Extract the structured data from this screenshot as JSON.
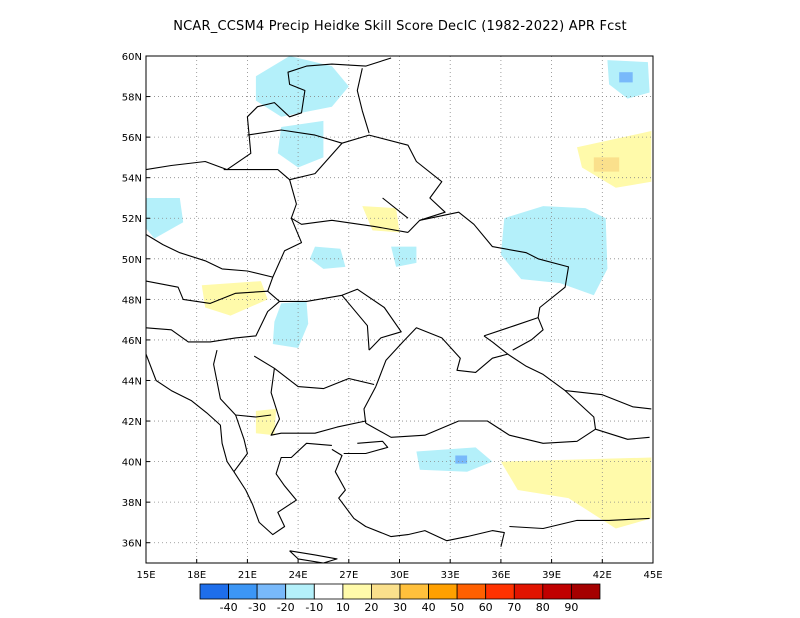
{
  "title": "NCAR_CCSM4 Precip Heidke Skill Score DecIC (1982-2022) APR Fcst",
  "map": {
    "lon_range": [
      15,
      45
    ],
    "lat_range": [
      35,
      60
    ],
    "x_ticks": [
      "15E",
      "18E",
      "21E",
      "24E",
      "27E",
      "30E",
      "33E",
      "36E",
      "39E",
      "42E",
      "45E"
    ],
    "y_ticks": [
      "36N",
      "38N",
      "40N",
      "42N",
      "44N",
      "46N",
      "48N",
      "50N",
      "52N",
      "54N",
      "56N",
      "58N",
      "60N"
    ],
    "grid": "dotted",
    "boundary_color": "#000000",
    "regions": [
      {
        "category": "-10",
        "color": "#b4f0fa",
        "name": "Baltic Sea area",
        "points": [
          [
            21.5,
            59.0
          ],
          [
            23.5,
            60.0
          ],
          [
            26.0,
            59.5
          ],
          [
            27.0,
            58.5
          ],
          [
            26.0,
            57.5
          ],
          [
            23.0,
            57.0
          ],
          [
            21.5,
            57.8
          ]
        ]
      },
      {
        "category": "-10",
        "color": "#b4f0fa",
        "name": "Latvia/Belarus",
        "points": [
          [
            23.0,
            56.5
          ],
          [
            25.5,
            56.8
          ],
          [
            25.5,
            55.0
          ],
          [
            24.0,
            54.5
          ],
          [
            22.8,
            55.2
          ]
        ]
      },
      {
        "category": "-10",
        "color": "#b4f0fa",
        "name": "Ukraine east / Russia",
        "points": [
          [
            36.2,
            52.0
          ],
          [
            38.5,
            52.6
          ],
          [
            41.0,
            52.5
          ],
          [
            42.2,
            52.0
          ],
          [
            42.3,
            49.5
          ],
          [
            41.5,
            48.2
          ],
          [
            39.5,
            48.8
          ],
          [
            37.2,
            49.0
          ],
          [
            36.0,
            50.2
          ]
        ]
      },
      {
        "category": "-10",
        "color": "#b4f0fa",
        "name": "Western Ukraine",
        "points": [
          [
            25.0,
            50.6
          ],
          [
            26.5,
            50.5
          ],
          [
            26.8,
            49.6
          ],
          [
            25.5,
            49.5
          ],
          [
            24.7,
            50.0
          ]
        ]
      },
      {
        "category": "-10",
        "color": "#b4f0fa",
        "name": "Central Ukraine",
        "points": [
          [
            29.5,
            50.6
          ],
          [
            31.0,
            50.6
          ],
          [
            31.0,
            49.8
          ],
          [
            29.8,
            49.6
          ]
        ]
      },
      {
        "category": "-10",
        "color": "#b4f0fa",
        "name": "Romania",
        "points": [
          [
            23.0,
            47.8
          ],
          [
            24.5,
            47.9
          ],
          [
            24.6,
            46.8
          ],
          [
            24.0,
            45.6
          ],
          [
            22.5,
            45.8
          ],
          [
            22.6,
            46.9
          ]
        ]
      },
      {
        "category": "-10",
        "color": "#b4f0fa",
        "name": "Poland west",
        "points": [
          [
            15.0,
            53.0
          ],
          [
            17.0,
            53.0
          ],
          [
            17.2,
            51.8
          ],
          [
            15.5,
            51.0
          ],
          [
            15.0,
            51.5
          ]
        ]
      },
      {
        "category": "-10",
        "color": "#b4f0fa",
        "name": "Turkey central",
        "points": [
          [
            31.0,
            40.5
          ],
          [
            34.5,
            40.7
          ],
          [
            35.5,
            40.0
          ],
          [
            34.0,
            39.5
          ],
          [
            31.2,
            39.6
          ]
        ]
      },
      {
        "category": "-10",
        "color": "#b4f0fa",
        "name": "NE corner",
        "points": [
          [
            42.3,
            59.8
          ],
          [
            44.7,
            59.7
          ],
          [
            44.8,
            58.2
          ],
          [
            43.5,
            57.9
          ],
          [
            42.4,
            58.6
          ]
        ]
      },
      {
        "category": "-20",
        "color": "#78b9fa",
        "name": "Turkey small",
        "points": [
          [
            33.3,
            40.3
          ],
          [
            34.0,
            40.3
          ],
          [
            34.0,
            39.9
          ],
          [
            33.3,
            39.9
          ]
        ]
      },
      {
        "category": "-20",
        "color": "#78b9fa",
        "name": "NE small",
        "points": [
          [
            43.0,
            59.2
          ],
          [
            43.8,
            59.2
          ],
          [
            43.8,
            58.7
          ],
          [
            43.0,
            58.7
          ]
        ]
      },
      {
        "category": "10",
        "color": "#fffaaa",
        "name": "Russia south-east",
        "points": [
          [
            40.5,
            55.5
          ],
          [
            44.9,
            56.3
          ],
          [
            44.9,
            53.8
          ],
          [
            42.8,
            53.5
          ],
          [
            40.8,
            54.5
          ]
        ]
      },
      {
        "category": "10",
        "color": "#fffaaa",
        "name": "Belarus south",
        "points": [
          [
            27.8,
            52.6
          ],
          [
            29.8,
            52.5
          ],
          [
            30.0,
            51.3
          ],
          [
            28.4,
            51.4
          ]
        ]
      },
      {
        "category": "10",
        "color": "#fffaaa",
        "name": "Hungary/Slovakia",
        "points": [
          [
            18.3,
            48.7
          ],
          [
            21.8,
            48.9
          ],
          [
            22.2,
            48.0
          ],
          [
            20.0,
            47.2
          ],
          [
            18.5,
            47.6
          ]
        ]
      },
      {
        "category": "10",
        "color": "#fffaaa",
        "name": "Bulgaria/Macedonia",
        "points": [
          [
            21.5,
            42.5
          ],
          [
            22.7,
            42.6
          ],
          [
            22.6,
            41.3
          ],
          [
            21.5,
            41.4
          ]
        ]
      },
      {
        "category": "10",
        "color": "#fffaaa",
        "name": "Turkey east",
        "points": [
          [
            36.0,
            40.0
          ],
          [
            44.9,
            40.2
          ],
          [
            44.9,
            37.2
          ],
          [
            42.8,
            36.7
          ],
          [
            40.0,
            38.2
          ],
          [
            37.0,
            38.6
          ]
        ]
      },
      {
        "category": "20",
        "color": "#fae08c",
        "name": "Russia small",
        "points": [
          [
            41.5,
            55.0
          ],
          [
            43.0,
            55.0
          ],
          [
            43.0,
            54.3
          ],
          [
            41.5,
            54.3
          ]
        ]
      }
    ]
  },
  "colorbar": {
    "colors": [
      "#1e6eeb",
      "#3c96f5",
      "#78b9fa",
      "#b4f0fa",
      "#ffffff",
      "#fffaaa",
      "#fae08c",
      "#ffc03c",
      "#ffa000",
      "#ff6000",
      "#ff3200",
      "#e11400",
      "#c00000",
      "#a50000"
    ],
    "labels": [
      "-40",
      "-30",
      "-20",
      "-10",
      "10",
      "20",
      "30",
      "40",
      "50",
      "60",
      "70",
      "80",
      "90"
    ]
  }
}
